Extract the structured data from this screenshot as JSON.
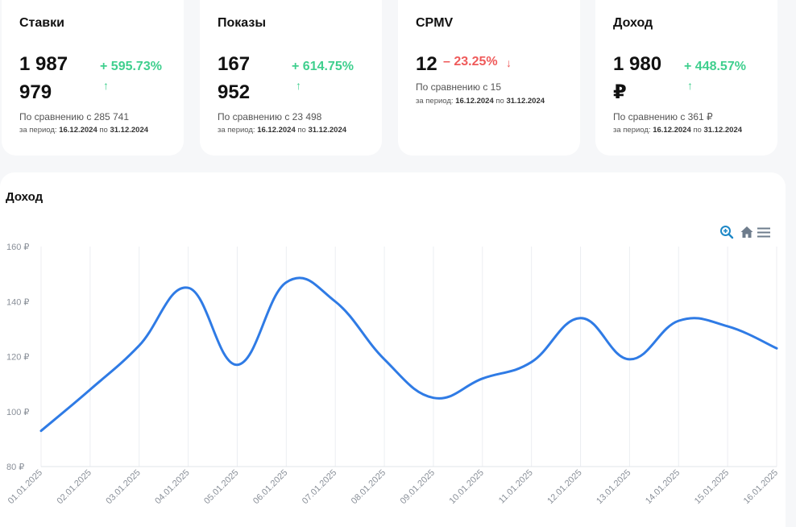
{
  "cards": [
    {
      "title": "Ставки",
      "value_line1": "1 987",
      "value_line2": "979",
      "delta": "+ 595.73%",
      "trend": "up",
      "compare": "По сравнению с 285 741",
      "period_prefix": "за период:",
      "period_from": "16.12.2024",
      "period_to_word": "по",
      "period_to": "31.12.2024"
    },
    {
      "title": "Показы",
      "value_line1": "167",
      "value_line2": "952",
      "delta": "+ 614.75%",
      "trend": "up",
      "compare": "По сравнению с 23 498",
      "period_prefix": "за период:",
      "period_from": "16.12.2024",
      "period_to_word": "по",
      "period_to": "31.12.2024"
    },
    {
      "title": "CPMV",
      "value_line1": "12",
      "value_line2": "",
      "delta": "– 23.25%",
      "trend": "down",
      "compare": "По сравнению с 15",
      "period_prefix": "за период:",
      "period_from": "16.12.2024",
      "period_to_word": "по",
      "period_to": "31.12.2024"
    },
    {
      "title": "Доход",
      "value_line1": "1 980",
      "value_line2": "₽",
      "delta": "+ 448.57%",
      "trend": "up",
      "compare": "По сравнению с 361 ₽",
      "period_prefix": "за период:",
      "period_from": "16.12.2024",
      "period_to_word": "по",
      "period_to": "31.12.2024"
    }
  ],
  "colors": {
    "positive": "#3fcf8e",
    "negative": "#ef5a5a",
    "line": "#2f7be5",
    "toolbar_active": "#1e88c7",
    "toolbar": "#6e7c8c"
  },
  "toolbar": {
    "icons": [
      "zoom-in-icon",
      "home-icon",
      "menu-icon"
    ]
  },
  "chart_data": {
    "type": "line",
    "title": "Доход",
    "x": [
      "01.01.2025",
      "02.01.2025",
      "03.01.2025",
      "04.01.2025",
      "05.01.2025",
      "06.01.2025",
      "07.01.2025",
      "08.01.2025",
      "09.01.2025",
      "10.01.2025",
      "11.01.2025",
      "12.01.2025",
      "13.01.2025",
      "14.01.2025",
      "15.01.2025",
      "16.01.2025"
    ],
    "series": [
      {
        "values": [
          93,
          108,
          124,
          145,
          117,
          147,
          140,
          119,
          105,
          112,
          118,
          134,
          119,
          133,
          131,
          123
        ]
      }
    ],
    "ylim": [
      80,
      160
    ],
    "yticks": [
      80,
      100,
      120,
      140,
      160
    ],
    "ytick_labels": [
      "80 ₽",
      "100 ₽",
      "120 ₽",
      "140 ₽",
      "160 ₽"
    ],
    "grid": true,
    "xlabel": "",
    "ylabel": ""
  }
}
